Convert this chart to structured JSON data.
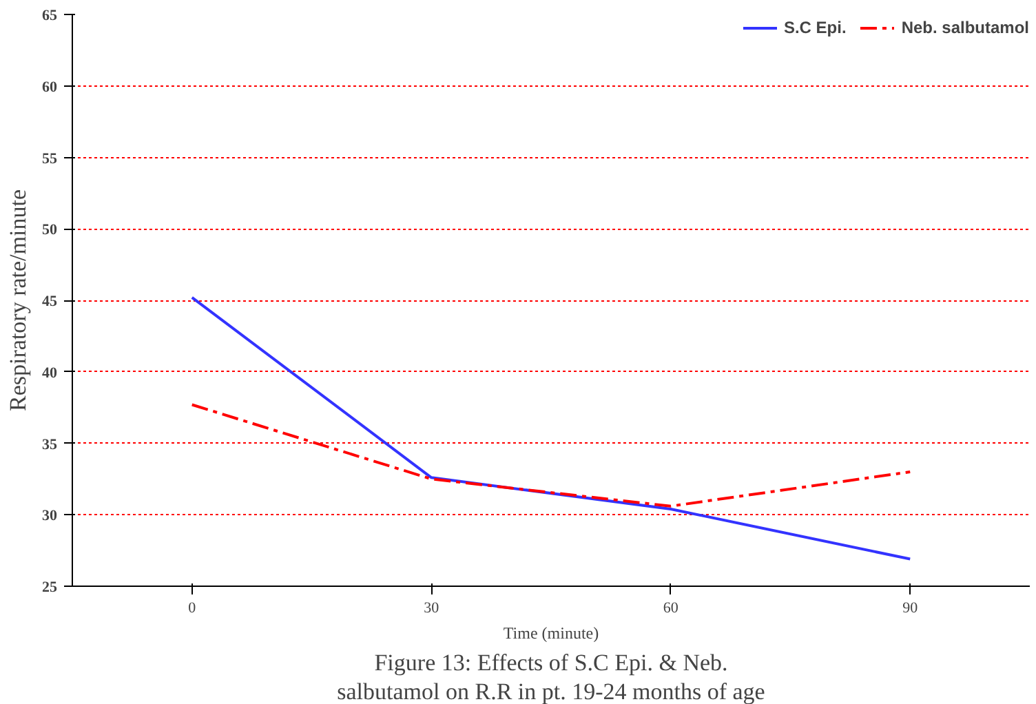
{
  "chart_data": {
    "type": "line",
    "xlabel": "Time (minute)",
    "ylabel": "Respiratory rate/minute",
    "x": [
      0,
      30,
      60,
      90
    ],
    "series": [
      {
        "name": "S.C Epi.",
        "color": "#3333ff",
        "values": [
          45.2,
          32.6,
          30.4,
          26.9
        ]
      },
      {
        "name": "Neb. salbutamol",
        "color": "#ff0000",
        "values": [
          37.7,
          32.5,
          30.6,
          33.0
        ],
        "line_style": "dashed"
      }
    ],
    "xlim": [
      -15,
      105
    ],
    "xticks": [
      0,
      30,
      60,
      90
    ],
    "ylim": [
      25,
      65
    ],
    "yticks": [
      25,
      30,
      35,
      40,
      45,
      50,
      55,
      60,
      65
    ],
    "grid": "y",
    "legend": "top right",
    "marker": "none",
    "annotations": [
      "Figure 13: Effects of S.C Epi. & Neb. salbutamol on R.R in pt. 19-24 months of age"
    ]
  }
}
